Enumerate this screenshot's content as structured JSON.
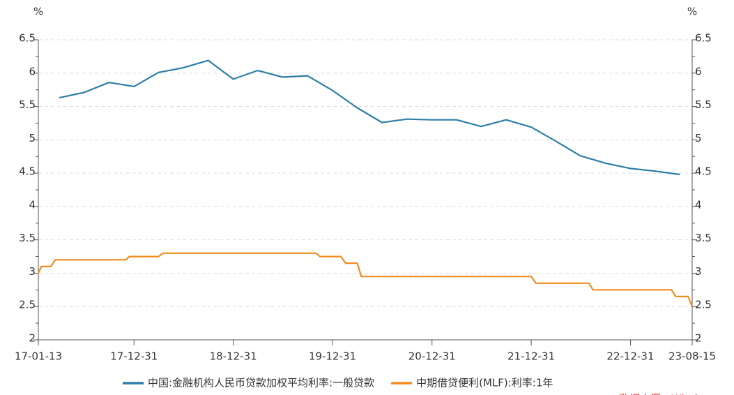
{
  "chart_data": {
    "type": "line",
    "y_unit": "%",
    "y2_unit": "%",
    "source": "数据来源：Wind",
    "xlim": [
      "2017-01-13",
      "2023-08-15"
    ],
    "xticks": [
      {
        "value": "2017-01-13",
        "label": "17-01-13"
      },
      {
        "value": "2017-12-31",
        "label": "17-12-31"
      },
      {
        "value": "2018-12-31",
        "label": "18-12-31"
      },
      {
        "value": "2019-12-31",
        "label": "19-12-31"
      },
      {
        "value": "2020-12-31",
        "label": "20-12-31"
      },
      {
        "value": "2021-12-31",
        "label": "21-12-31"
      },
      {
        "value": "2022-12-31",
        "label": "22-12-31"
      },
      {
        "value": "2023-08-15",
        "label": "23-08-15"
      }
    ],
    "ylim": [
      2,
      6.5
    ],
    "yticks": [
      2,
      2.5,
      3,
      3.5,
      4,
      4.5,
      5,
      5.5,
      6,
      6.5
    ],
    "y2lim": [
      2,
      6.5
    ],
    "y2ticks": [
      2,
      2.5,
      3,
      3.5,
      4,
      4.5,
      5,
      5.5,
      6,
      6.5
    ],
    "grid": true,
    "series": [
      {
        "name": "中国:金融机构人民币贷款加权平均利率:一般贷款",
        "color": "#2e7ea6",
        "x": [
          "2017-03-31",
          "2017-06-30",
          "2017-09-30",
          "2017-12-31",
          "2018-03-31",
          "2018-06-30",
          "2018-09-30",
          "2018-12-31",
          "2019-03-31",
          "2019-06-30",
          "2019-09-30",
          "2019-12-31",
          "2020-03-31",
          "2020-06-30",
          "2020-09-30",
          "2020-12-31",
          "2021-03-31",
          "2021-06-30",
          "2021-09-30",
          "2021-12-31",
          "2022-03-31",
          "2022-06-30",
          "2022-09-30",
          "2022-12-31",
          "2023-03-31",
          "2023-06-30"
        ],
        "values": [
          5.63,
          5.71,
          5.86,
          5.8,
          6.01,
          6.08,
          6.19,
          5.91,
          6.04,
          5.94,
          5.96,
          5.74,
          5.48,
          5.26,
          5.31,
          5.3,
          5.3,
          5.2,
          5.3,
          5.19,
          4.98,
          4.76,
          4.65,
          4.57,
          4.53,
          4.48
        ]
      },
      {
        "name": "中期借贷便利(MLF):利率:1年",
        "color": "#f28c1c",
        "axis": "y2",
        "x": [
          "2017-01-13",
          "2017-01-24",
          "2017-02-28",
          "2017-03-16",
          "2017-11-30",
          "2017-12-14",
          "2018-03-31",
          "2018-04-17",
          "2019-10-31",
          "2019-11-15",
          "2020-01-31",
          "2020-02-17",
          "2020-03-31",
          "2020-04-15",
          "2021-12-31",
          "2022-01-17",
          "2022-07-31",
          "2022-08-15",
          "2023-05-31",
          "2023-06-15",
          "2023-07-31",
          "2023-08-15"
        ],
        "values": [
          3.0,
          3.1,
          3.1,
          3.2,
          3.2,
          3.25,
          3.25,
          3.3,
          3.3,
          3.25,
          3.25,
          3.15,
          3.15,
          2.95,
          2.95,
          2.85,
          2.85,
          2.75,
          2.75,
          2.65,
          2.65,
          2.5
        ]
      }
    ]
  }
}
